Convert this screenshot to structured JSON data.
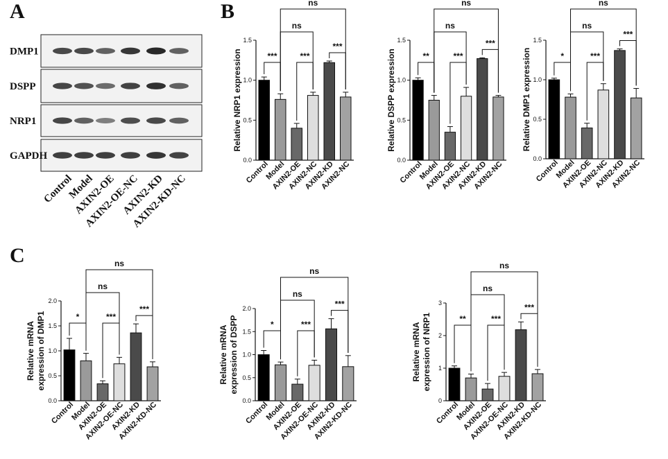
{
  "panels": {
    "a": "A",
    "b": "B",
    "c": "C"
  },
  "blot": {
    "proteins": [
      "DMP1",
      "DSPP",
      "NRP1",
      "GAPDH"
    ],
    "lanes": [
      "Control",
      "Model",
      "AXIN2-OE",
      "AXIN2-OE-NC",
      "AXIN2-KD",
      "AXIN2-KD-NC"
    ]
  },
  "chart_data": [
    {
      "type": "bar",
      "panel": "B",
      "categories": [
        "Control",
        "Model",
        "AXIN2-OE",
        "AXIN2-NC",
        "AXIN2-KD",
        "AXIN2-NC"
      ],
      "values": [
        1.0,
        0.76,
        0.4,
        0.81,
        1.22,
        0.79
      ],
      "errors": [
        0.04,
        0.07,
        0.06,
        0.04,
        0.02,
        0.06
      ],
      "ylabel": "Relative NRP1 expression",
      "ylim": [
        0,
        1.5
      ],
      "yticks": [
        "0.0",
        "0.5",
        "1.0",
        "1.5"
      ],
      "comparisons": [
        {
          "a": 0,
          "b": 1,
          "label": "***"
        },
        {
          "a": 2,
          "b": 3,
          "label": "***"
        },
        {
          "a": 4,
          "b": 5,
          "label": "***"
        },
        {
          "a": 1,
          "b": 3,
          "label": "ns"
        },
        {
          "a": 1,
          "b": 5,
          "label": "ns"
        }
      ]
    },
    {
      "type": "bar",
      "panel": "B",
      "categories": [
        "Control",
        "Model",
        "AXIN2-OE",
        "AXIN2-NC",
        "AXIN2-KD",
        "AXIN2-NC"
      ],
      "values": [
        1.0,
        0.75,
        0.35,
        0.8,
        1.27,
        0.79
      ],
      "errors": [
        0.03,
        0.06,
        0.07,
        0.11,
        0.01,
        0.02
      ],
      "ylabel": "Relative DSPP expression",
      "ylim": [
        0,
        1.5
      ],
      "yticks": [
        "0.0",
        "0.5",
        "1.0",
        "1.5"
      ],
      "comparisons": [
        {
          "a": 0,
          "b": 1,
          "label": "**"
        },
        {
          "a": 2,
          "b": 3,
          "label": "***"
        },
        {
          "a": 4,
          "b": 5,
          "label": "***"
        },
        {
          "a": 1,
          "b": 3,
          "label": "ns"
        },
        {
          "a": 1,
          "b": 5,
          "label": "ns"
        }
      ]
    },
    {
      "type": "bar",
      "panel": "B",
      "categories": [
        "Control",
        "Model",
        "AXIN2-OE",
        "AXIN2-NC",
        "AXIN2-KD",
        "AXIN2-NC"
      ],
      "values": [
        1.0,
        0.78,
        0.39,
        0.87,
        1.37,
        0.77
      ],
      "errors": [
        0.02,
        0.04,
        0.06,
        0.08,
        0.02,
        0.12
      ],
      "ylabel": "Relative DMP1 expression",
      "ylim": [
        0,
        1.5
      ],
      "yticks": [
        "0.0",
        "0.5",
        "1.0",
        "1.5"
      ],
      "comparisons": [
        {
          "a": 0,
          "b": 1,
          "label": "*"
        },
        {
          "a": 2,
          "b": 3,
          "label": "***"
        },
        {
          "a": 4,
          "b": 5,
          "label": "***"
        },
        {
          "a": 1,
          "b": 3,
          "label": "ns"
        },
        {
          "a": 1,
          "b": 5,
          "label": "ns"
        }
      ]
    },
    {
      "type": "bar",
      "panel": "C",
      "categories": [
        "Control",
        "Model",
        "AXIN2-OE",
        "AXIN2-OE-NC",
        "AXIN2-KD",
        "AXIN2-KD-NC"
      ],
      "values": [
        1.02,
        0.8,
        0.34,
        0.74,
        1.36,
        0.68
      ],
      "errors": [
        0.23,
        0.15,
        0.06,
        0.13,
        0.18,
        0.1
      ],
      "ylabel": [
        "Relative mRNA",
        "expression of DMP1"
      ],
      "ylim": [
        0,
        2.0
      ],
      "yticks": [
        "0.0",
        "0.5",
        "1.0",
        "1.5",
        "2.0"
      ],
      "comparisons": [
        {
          "a": 0,
          "b": 1,
          "label": "*"
        },
        {
          "a": 2,
          "b": 3,
          "label": "***"
        },
        {
          "a": 4,
          "b": 5,
          "label": "***"
        },
        {
          "a": 1,
          "b": 3,
          "label": "ns"
        },
        {
          "a": 1,
          "b": 5,
          "label": "ns"
        }
      ]
    },
    {
      "type": "bar",
      "panel": "C",
      "categories": [
        "Control",
        "Model",
        "AXIN2-OE",
        "AXIN2-OE-NC",
        "AXIN2-KD",
        "AXIN2-KD-NC"
      ],
      "values": [
        1.0,
        0.78,
        0.36,
        0.77,
        1.56,
        0.74
      ],
      "errors": [
        0.09,
        0.06,
        0.11,
        0.11,
        0.22,
        0.24
      ],
      "ylabel": [
        "Relative mRNA",
        "expression of DSPP"
      ],
      "ylim": [
        0,
        2.0
      ],
      "yticks": [
        "0.0",
        "0.5",
        "1.0",
        "1.5",
        "2.0"
      ],
      "comparisons": [
        {
          "a": 0,
          "b": 1,
          "label": "*"
        },
        {
          "a": 2,
          "b": 3,
          "label": "***"
        },
        {
          "a": 4,
          "b": 5,
          "label": "***"
        },
        {
          "a": 1,
          "b": 3,
          "label": "ns"
        },
        {
          "a": 1,
          "b": 5,
          "label": "ns"
        }
      ]
    },
    {
      "type": "bar",
      "panel": "C",
      "categories": [
        "Control",
        "Model",
        "AXIN2-OE",
        "AXIN2-OE-NC",
        "AXIN2-KD",
        "AXIN2-KD-NC"
      ],
      "values": [
        1.0,
        0.7,
        0.36,
        0.75,
        2.18,
        0.83
      ],
      "errors": [
        0.07,
        0.12,
        0.17,
        0.12,
        0.24,
        0.13
      ],
      "ylabel": [
        "Relative mRNA",
        "expression of NRP1"
      ],
      "ylim": [
        0,
        3
      ],
      "yticks": [
        "0",
        "1",
        "2",
        "3"
      ],
      "comparisons": [
        {
          "a": 0,
          "b": 1,
          "label": "**"
        },
        {
          "a": 2,
          "b": 3,
          "label": "***"
        },
        {
          "a": 4,
          "b": 5,
          "label": "***"
        },
        {
          "a": 1,
          "b": 3,
          "label": "ns"
        },
        {
          "a": 1,
          "b": 5,
          "label": "ns"
        }
      ]
    }
  ],
  "bar_colors": [
    "#000000",
    "#9a9a9a",
    "#686868",
    "#dedede",
    "#4a4a4a",
    "#a2a2a2"
  ]
}
